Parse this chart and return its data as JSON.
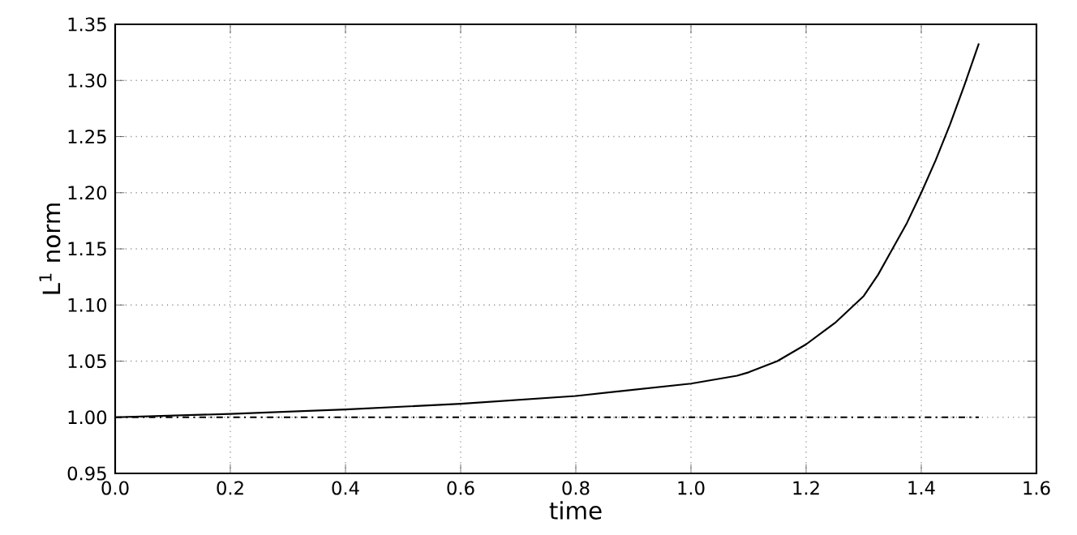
{
  "chart_data": {
    "type": "line",
    "xlabel": "time",
    "ylabel": "L$^{1}$ norm",
    "xlim": [
      0.0,
      1.6
    ],
    "ylim": [
      0.95,
      1.35
    ],
    "xticks": [
      {
        "value": 0,
        "label": "0.0"
      },
      0.2,
      0.4,
      0.6,
      0.8,
      {
        "value": 1,
        "label": "1.0"
      },
      1.2,
      1.4,
      1.6
    ],
    "yticks": [
      0.95,
      {
        "value": 1,
        "label": "1.00"
      },
      1.05,
      {
        "value": 1.1,
        "label": "1.10"
      },
      1.15,
      {
        "value": 1.2,
        "label": "1.20"
      },
      1.25,
      {
        "value": 1.3,
        "label": "1.30"
      },
      1.35
    ],
    "grid": true,
    "series": [
      {
        "color": "#000000",
        "line_style": "solid",
        "x": [
          0,
          0.2,
          0.4,
          0.6,
          0.8,
          1.0,
          1.08,
          1.1,
          1.15,
          1.2,
          1.25,
          1.3,
          1.325,
          1.35,
          1.375,
          1.4,
          1.425,
          1.45,
          1.475,
          1.5
        ],
        "values": [
          1.0,
          1.003,
          1.007,
          1.012,
          1.019,
          1.03,
          1.037,
          1.04,
          1.05,
          1.065,
          1.084,
          1.108,
          1.127,
          1.15,
          1.173,
          1.2,
          1.229,
          1.261,
          1.296,
          1.333
        ]
      },
      {
        "color": "#000000",
        "line_style": "dashdot",
        "x": [
          0,
          1.5
        ],
        "values": [
          1.0,
          1.0
        ]
      }
    ]
  }
}
